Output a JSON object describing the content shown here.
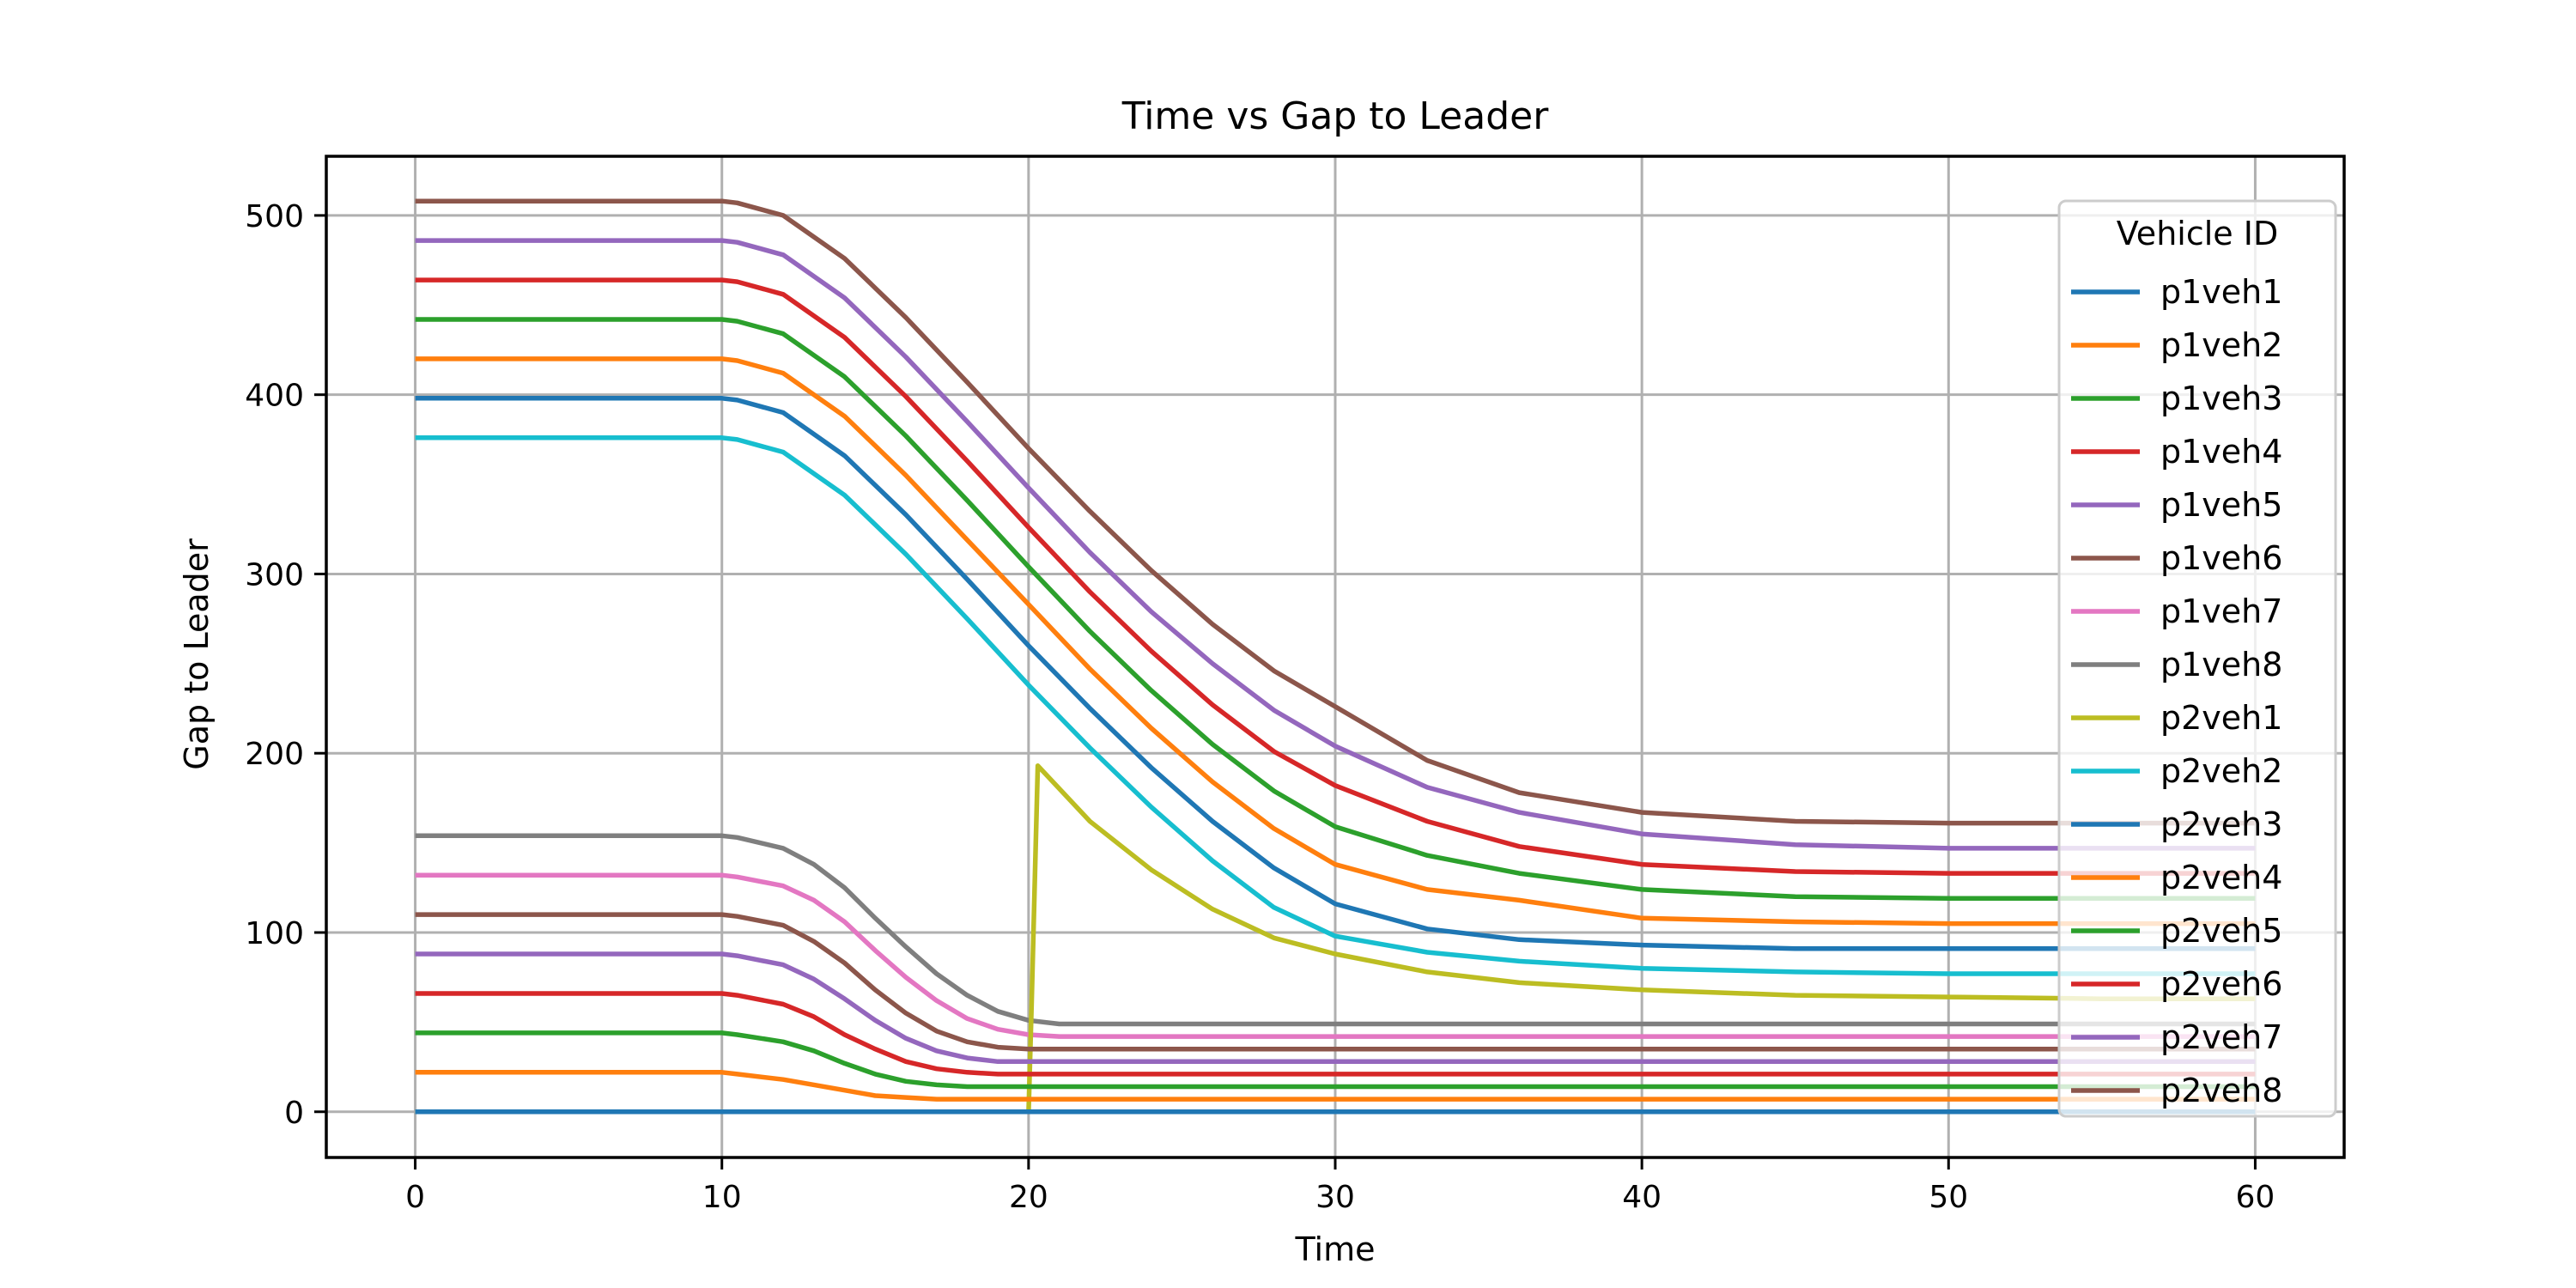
{
  "chart_data": {
    "type": "line",
    "title": "Time vs Gap to Leader",
    "xlabel": "Time",
    "ylabel": "Gap to Leader",
    "xlim": [
      -2.9,
      62.9
    ],
    "ylim": [
      -25.5,
      533
    ],
    "xticks": [
      0,
      10,
      20,
      30,
      40,
      50,
      60
    ],
    "yticks": [
      0,
      100,
      200,
      300,
      400,
      500
    ],
    "grid": true,
    "legend": {
      "title": "Vehicle ID",
      "placement": "upper-right"
    },
    "series": [
      {
        "name": "p1veh1",
        "color": "#1f77b4",
        "x": [
          0,
          10,
          10.5,
          12,
          14,
          16,
          18,
          20,
          22,
          24,
          26,
          28,
          30,
          33,
          36,
          40,
          45,
          50,
          55,
          60
        ],
        "y": [
          398,
          398,
          397,
          390,
          366,
          333,
          297,
          260,
          225,
          192,
          162,
          136,
          116,
          102,
          96,
          93,
          91,
          91,
          91,
          91
        ]
      },
      {
        "name": "p1veh2",
        "color": "#ff7f0e",
        "x": [
          0,
          10,
          10.5,
          12,
          14,
          16,
          18,
          20,
          22,
          24,
          26,
          28,
          30,
          33,
          36,
          40,
          45,
          50,
          55,
          60
        ],
        "y": [
          420,
          420,
          419,
          412,
          388,
          355,
          319,
          283,
          247,
          214,
          184,
          158,
          138,
          124,
          118,
          108,
          106,
          105,
          105,
          105
        ]
      },
      {
        "name": "p1veh3",
        "color": "#2ca02c",
        "x": [
          0,
          10,
          10.5,
          12,
          14,
          16,
          18,
          20,
          22,
          24,
          26,
          28,
          30,
          33,
          36,
          40,
          45,
          50,
          55,
          60
        ],
        "y": [
          442,
          442,
          441,
          434,
          410,
          377,
          341,
          304,
          268,
          235,
          205,
          179,
          159,
          143,
          133,
          124,
          120,
          119,
          119,
          119
        ]
      },
      {
        "name": "p1veh4",
        "color": "#d62728",
        "x": [
          0,
          10,
          10.5,
          12,
          14,
          16,
          18,
          20,
          22,
          24,
          26,
          28,
          30,
          33,
          36,
          40,
          45,
          50,
          55,
          60
        ],
        "y": [
          464,
          464,
          463,
          456,
          432,
          399,
          363,
          326,
          290,
          257,
          227,
          201,
          182,
          162,
          148,
          138,
          134,
          133,
          133,
          133
        ]
      },
      {
        "name": "p1veh5",
        "color": "#9467bd",
        "x": [
          0,
          10,
          10.5,
          12,
          14,
          16,
          18,
          20,
          22,
          24,
          26,
          28,
          30,
          33,
          36,
          40,
          45,
          50,
          55,
          60
        ],
        "y": [
          486,
          486,
          485,
          478,
          454,
          421,
          385,
          348,
          312,
          279,
          250,
          224,
          204,
          181,
          167,
          155,
          149,
          147,
          147,
          147
        ]
      },
      {
        "name": "p1veh6",
        "color": "#8c564b",
        "x": [
          0,
          10,
          10.5,
          12,
          14,
          16,
          18,
          20,
          22,
          24,
          26,
          28,
          30,
          33,
          36,
          40,
          45,
          50,
          55,
          60
        ],
        "y": [
          508,
          508,
          507,
          500,
          476,
          443,
          407,
          370,
          335,
          302,
          272,
          246,
          226,
          196,
          178,
          167,
          162,
          161,
          161,
          161
        ]
      },
      {
        "name": "p1veh7",
        "color": "#e377c2",
        "x": [
          0,
          10,
          10.5,
          12,
          13,
          14,
          15,
          16,
          17,
          18,
          19,
          20,
          21,
          22,
          25,
          30,
          40,
          50,
          60
        ],
        "y": [
          132,
          132,
          131,
          126,
          118,
          106,
          90,
          75,
          62,
          52,
          46,
          43,
          42,
          42,
          42,
          42,
          42,
          42,
          42
        ]
      },
      {
        "name": "p1veh8",
        "color": "#7f7f7f",
        "x": [
          0,
          10,
          10.5,
          12,
          13,
          14,
          15,
          16,
          17,
          18,
          19,
          20,
          21,
          22,
          25,
          30,
          40,
          50,
          60
        ],
        "y": [
          154,
          154,
          153,
          147,
          138,
          125,
          108,
          92,
          77,
          65,
          56,
          51,
          49,
          49,
          49,
          49,
          49,
          49,
          49
        ]
      },
      {
        "name": "p2veh1",
        "color": "#bcbd22",
        "x": [
          0,
          10,
          20,
          20.1,
          20.3,
          22,
          24,
          26,
          28,
          30,
          33,
          36,
          40,
          45,
          50,
          55,
          60
        ],
        "y": [
          0,
          0,
          0,
          60,
          193,
          162,
          135,
          113,
          97,
          88,
          78,
          72,
          68,
          65,
          64,
          63,
          63
        ]
      },
      {
        "name": "p2veh2",
        "color": "#17becf",
        "x": [
          0,
          10,
          10.5,
          12,
          14,
          16,
          18,
          20,
          22,
          24,
          26,
          28,
          30,
          33,
          36,
          40,
          45,
          50,
          55,
          60
        ],
        "y": [
          376,
          376,
          375,
          368,
          344,
          311,
          275,
          238,
          203,
          170,
          140,
          114,
          98,
          89,
          84,
          80,
          78,
          77,
          77,
          77
        ]
      },
      {
        "name": "p2veh3",
        "color": "#1f77b4",
        "x": [
          0,
          20,
          20.3,
          30,
          40,
          50,
          60
        ],
        "y": [
          0,
          0,
          0,
          0,
          0,
          0,
          0
        ]
      },
      {
        "name": "p2veh4",
        "color": "#ff7f0e",
        "x": [
          0,
          10,
          10.5,
          12,
          13,
          14,
          15,
          16,
          17,
          18,
          20,
          25,
          30,
          40,
          50,
          60
        ],
        "y": [
          22,
          22,
          21,
          18,
          15,
          12,
          9,
          8,
          7,
          7,
          7,
          7,
          7,
          7,
          7,
          7
        ]
      },
      {
        "name": "p2veh5",
        "color": "#2ca02c",
        "x": [
          0,
          10,
          10.5,
          12,
          13,
          14,
          15,
          16,
          17,
          18,
          20,
          25,
          30,
          40,
          50,
          60
        ],
        "y": [
          44,
          44,
          43,
          39,
          34,
          27,
          21,
          17,
          15,
          14,
          14,
          14,
          14,
          14,
          14,
          14
        ]
      },
      {
        "name": "p2veh6",
        "color": "#d62728",
        "x": [
          0,
          10,
          10.5,
          12,
          13,
          14,
          15,
          16,
          17,
          18,
          19,
          20,
          22,
          25,
          30,
          40,
          50,
          60
        ],
        "y": [
          66,
          66,
          65,
          60,
          53,
          43,
          35,
          28,
          24,
          22,
          21,
          21,
          21,
          21,
          21,
          21,
          21,
          21
        ]
      },
      {
        "name": "p2veh7",
        "color": "#9467bd",
        "x": [
          0,
          10,
          10.5,
          12,
          13,
          14,
          15,
          16,
          17,
          18,
          19,
          20,
          22,
          25,
          30,
          40,
          50,
          60
        ],
        "y": [
          88,
          88,
          87,
          82,
          74,
          63,
          51,
          41,
          34,
          30,
          28,
          28,
          28,
          28,
          28,
          28,
          28,
          28
        ]
      },
      {
        "name": "p2veh8",
        "color": "#8c564b",
        "x": [
          0,
          10,
          10.5,
          12,
          13,
          14,
          15,
          16,
          17,
          18,
          19,
          20,
          22,
          25,
          30,
          40,
          50,
          60
        ],
        "y": [
          110,
          110,
          109,
          104,
          95,
          83,
          68,
          55,
          45,
          39,
          36,
          35,
          35,
          35,
          35,
          35,
          35,
          35
        ]
      }
    ]
  }
}
